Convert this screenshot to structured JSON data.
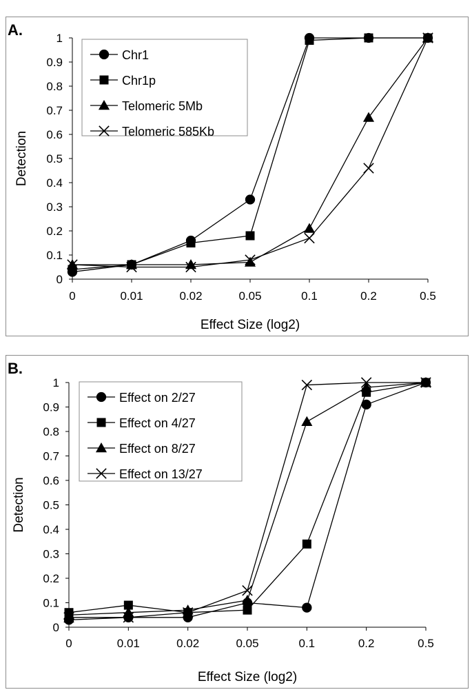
{
  "chart_data": [
    {
      "type": "line",
      "panel_label": "A.",
      "categories": [
        "0",
        "0.01",
        "0.02",
        "0.05",
        "0.1",
        "0.2",
        "0.5"
      ],
      "xlabel": "Effect Size (log2)",
      "ylabel": "Detection",
      "ylim": [
        0,
        1
      ],
      "yticks": [
        "0",
        "0.1",
        "0.2",
        "0.3",
        "0.4",
        "0.5",
        "0.6",
        "0.7",
        "0.8",
        "0.9",
        "1"
      ],
      "legend_position": "top-left",
      "series": [
        {
          "name": "Chr1",
          "marker": "circle",
          "values": [
            0.03,
            0.06,
            0.16,
            0.33,
            1.0,
            1.0,
            1.0
          ]
        },
        {
          "name": "Chr1p",
          "marker": "square",
          "values": [
            0.04,
            0.06,
            0.15,
            0.18,
            0.99,
            1.0,
            1.0
          ]
        },
        {
          "name": "Telomeric 5Mb",
          "marker": "triangle",
          "values": [
            0.06,
            0.06,
            0.06,
            0.07,
            0.21,
            0.67,
            1.0
          ]
        },
        {
          "name": "Telomeric 585Kb",
          "marker": "x",
          "values": [
            0.06,
            0.05,
            0.05,
            0.08,
            0.17,
            0.46,
            1.0
          ]
        }
      ]
    },
    {
      "type": "line",
      "panel_label": "B.",
      "categories": [
        "0",
        "0.01",
        "0.02",
        "0.05",
        "0.1",
        "0.2",
        "0.5"
      ],
      "xlabel": "Effect Size (log2)",
      "ylabel": "Detection",
      "ylim": [
        0,
        1
      ],
      "yticks": [
        "0",
        "0.1",
        "0.2",
        "0.3",
        "0.4",
        "0.5",
        "0.6",
        "0.7",
        "0.8",
        "0.9",
        "1"
      ],
      "legend_position": "top-left",
      "series": [
        {
          "name": "Effect on 2/27",
          "marker": "circle",
          "values": [
            0.03,
            0.04,
            0.04,
            0.1,
            0.08,
            0.91,
            1.0
          ]
        },
        {
          "name": "Effect on 4/27",
          "marker": "square",
          "values": [
            0.06,
            0.09,
            0.06,
            0.07,
            0.34,
            0.96,
            1.0
          ]
        },
        {
          "name": "Effect on 8/27",
          "marker": "triangle",
          "values": [
            0.05,
            0.06,
            0.07,
            0.11,
            0.84,
            0.98,
            1.0
          ]
        },
        {
          "name": "Effect on 13/27",
          "marker": "x",
          "values": [
            0.04,
            0.04,
            0.06,
            0.15,
            0.99,
            1.0,
            1.0
          ]
        }
      ]
    }
  ]
}
